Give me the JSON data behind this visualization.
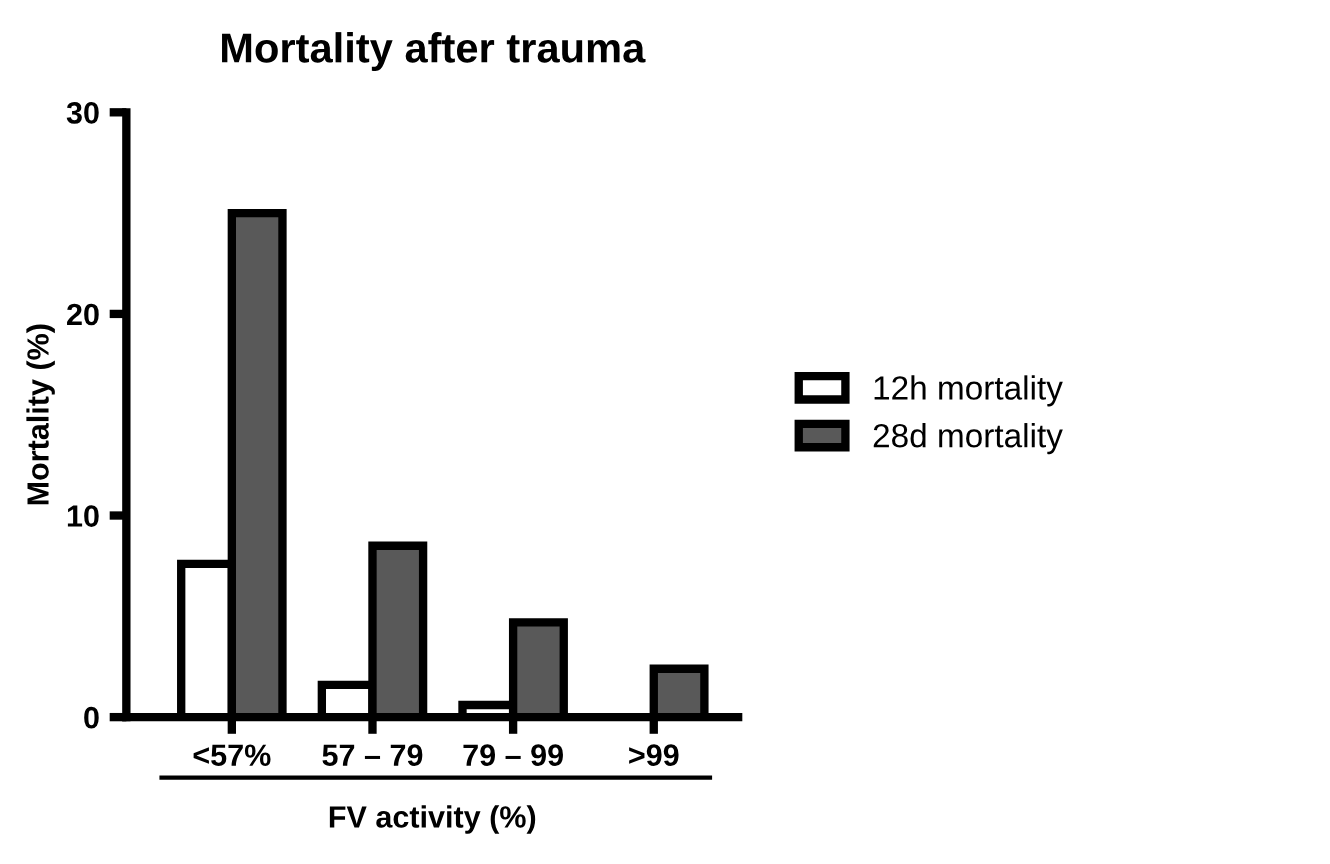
{
  "chart_data": {
    "type": "bar",
    "title": "Mortality after trauma",
    "xlabel": "FV activity (%)",
    "ylabel": "Mortality (%)",
    "categories": [
      "<57%",
      "57 – 79",
      "79 – 99",
      ">99"
    ],
    "series": [
      {
        "name": "12h mortality",
        "color": "#ffffff",
        "values": [
          7.6,
          1.6,
          0.6,
          null
        ]
      },
      {
        "name": "28d mortality",
        "color": "#595959",
        "values": [
          25.0,
          8.5,
          4.7,
          2.4
        ]
      }
    ],
    "ylim": [
      0,
      30
    ],
    "yticks": [
      0,
      10,
      20,
      30
    ],
    "grid": false,
    "legend": "right"
  }
}
